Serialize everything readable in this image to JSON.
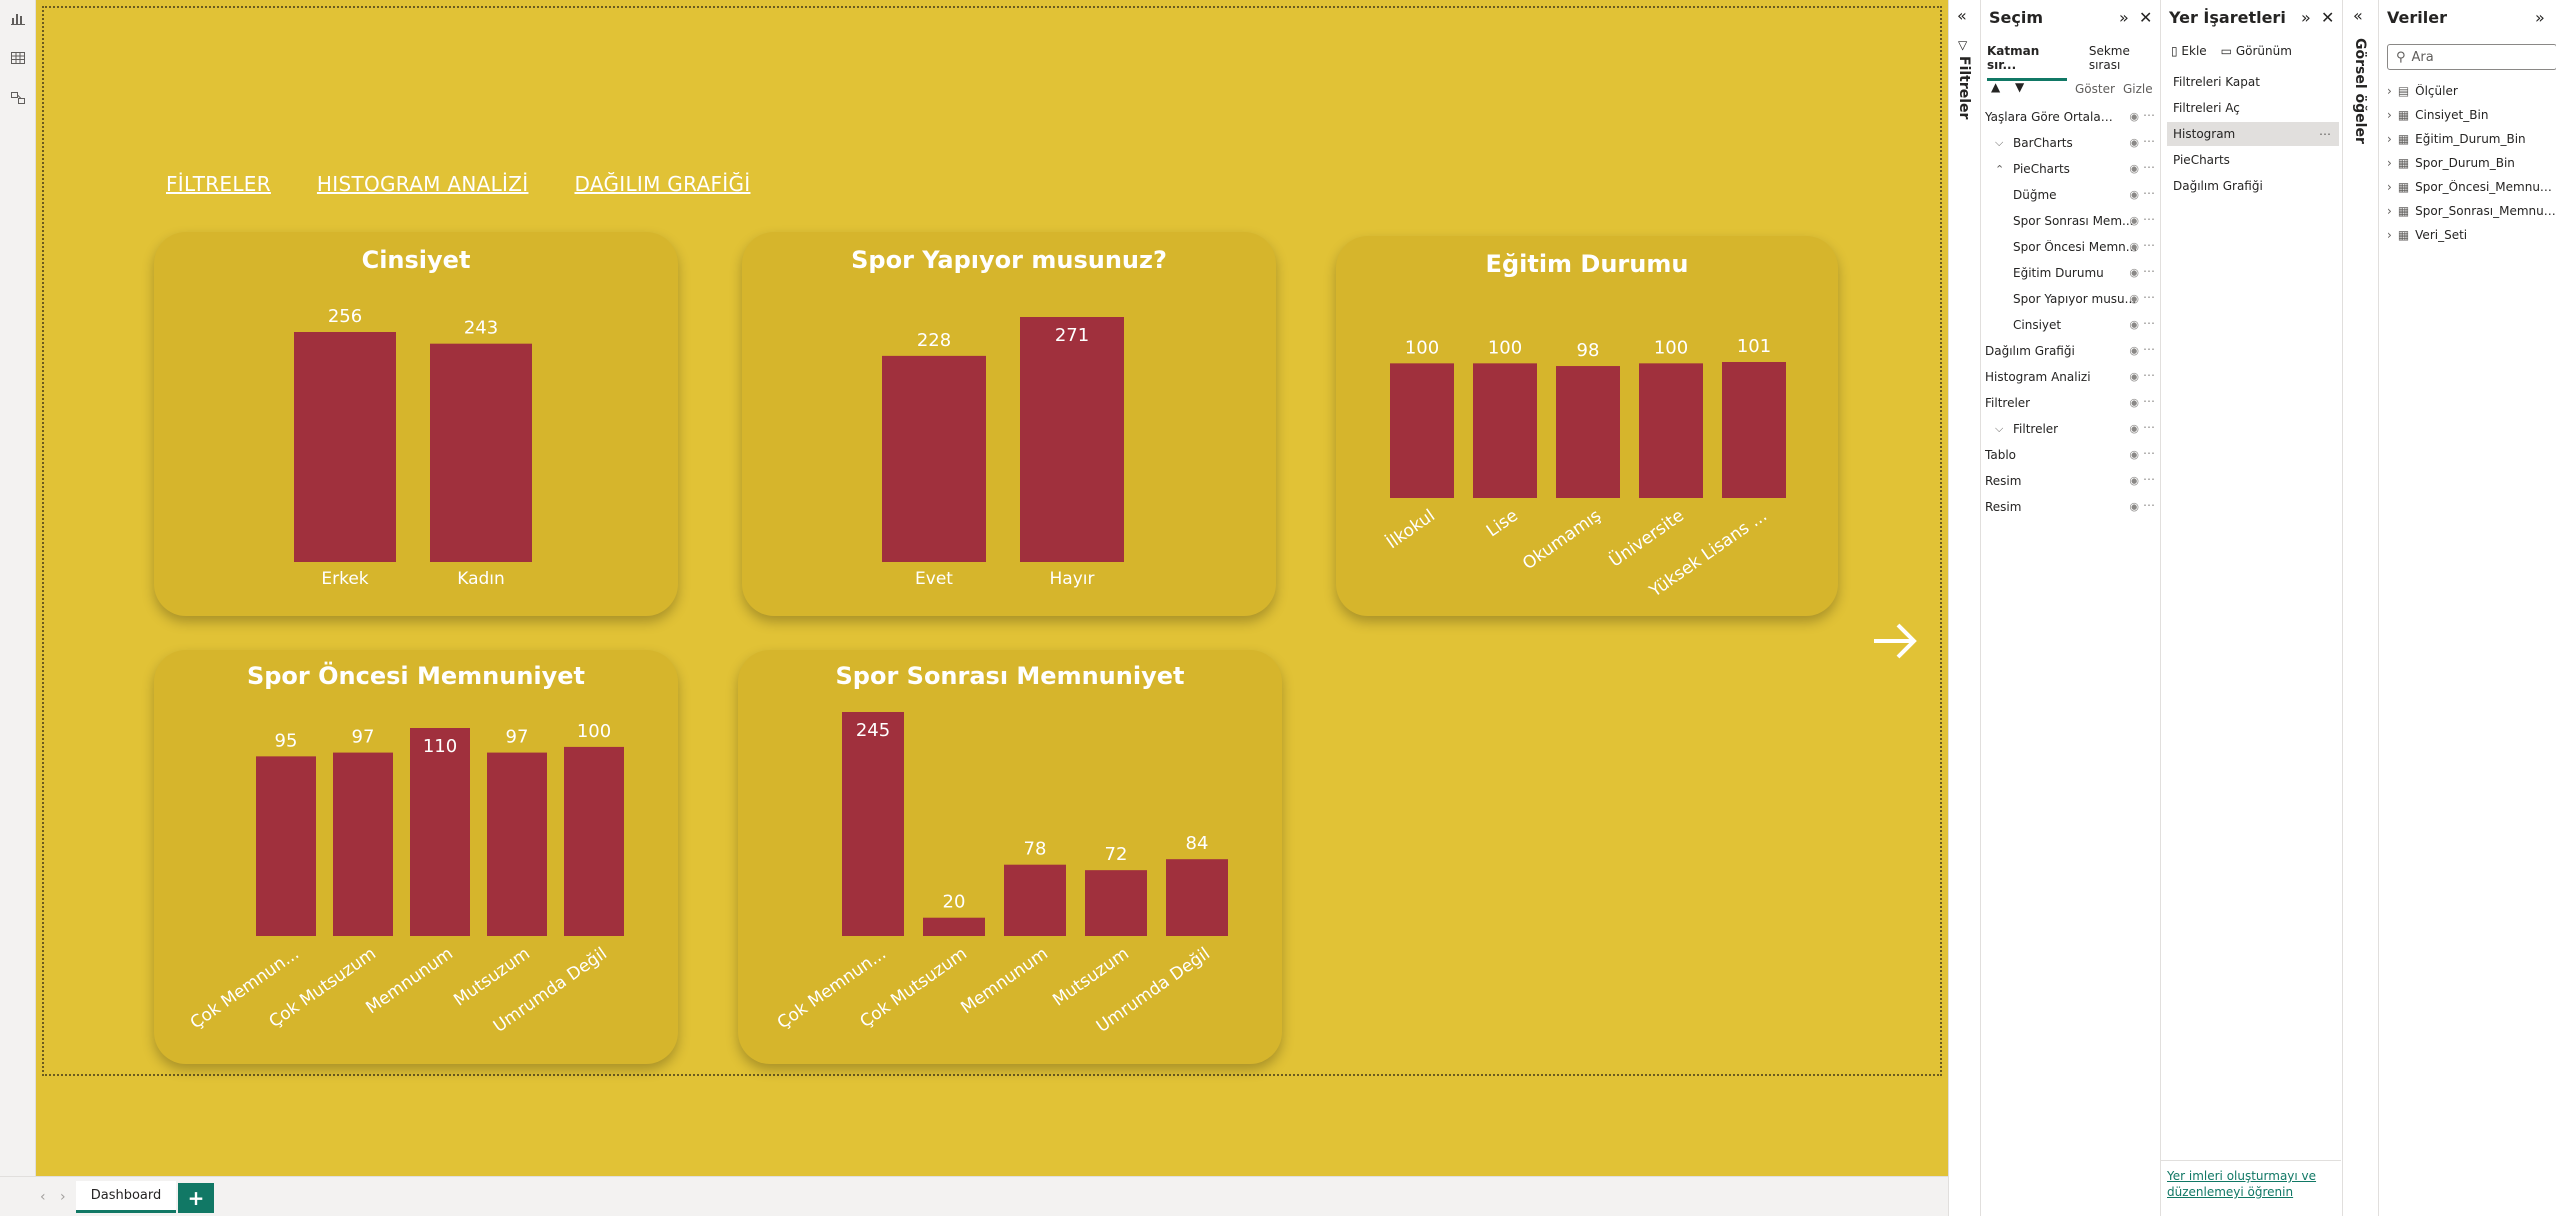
{
  "nav_links": [
    "FİLTRELER",
    "HISTOGRAM ANALİZİ",
    "DAĞILIM GRAFİĞİ"
  ],
  "colors": {
    "canvas": "#e1c236",
    "card": "#d6b52c",
    "bar": "#a0303d",
    "accent": "#117865"
  },
  "charts": [
    {
      "title": "Cinsiyet",
      "rotate": false,
      "labels_inside_max": false
    },
    {
      "title": "Spor Yapıyor musunuz?",
      "rotate": false
    },
    {
      "title": "Eğitim Durumu",
      "rotate": true
    },
    {
      "title": "Spor Öncesi Memnuniyet",
      "rotate": true
    },
    {
      "title": "Spor Sonrası Memnuniyet",
      "rotate": true
    }
  ],
  "chart_data": [
    {
      "type": "bar",
      "title": "Cinsiyet",
      "categories": [
        "Erkek",
        "Kadın"
      ],
      "values": [
        256,
        243
      ],
      "ylim": [
        0,
        256
      ]
    },
    {
      "type": "bar",
      "title": "Spor Yapıyor musunuz?",
      "categories": [
        "Evet",
        "Hayır"
      ],
      "values": [
        228,
        271
      ],
      "ylim": [
        0,
        271
      ]
    },
    {
      "type": "bar",
      "title": "Eğitim Durumu",
      "categories": [
        "İlkokul",
        "Lise",
        "Okumamış",
        "Üniversite",
        "Yüksek Lisans ..."
      ],
      "values": [
        100,
        100,
        98,
        100,
        101
      ],
      "ylim": [
        0,
        101
      ]
    },
    {
      "type": "bar",
      "title": "Spor Öncesi Memnuniyet",
      "categories": [
        "Çok Memnun...",
        "Çok Mutsuzum",
        "Memnunum",
        "Mutsuzum",
        "Umrumda Değil"
      ],
      "values": [
        95,
        97,
        110,
        97,
        100
      ],
      "ylim": [
        0,
        110
      ]
    },
    {
      "type": "bar",
      "title": "Spor Sonrası Memnuniyet",
      "categories": [
        "Çok Memnun...",
        "Çok Mutsuzum",
        "Memnunum",
        "Mutsuzum",
        "Umrumda Değil"
      ],
      "values": [
        245,
        20,
        78,
        72,
        84
      ],
      "ylim": [
        0,
        245
      ]
    }
  ],
  "bottom": {
    "tab": "Dashboard",
    "add": "+"
  },
  "filters_pane": {
    "title": "Filtreler"
  },
  "selection_pane": {
    "title": "Seçim",
    "tabs": [
      "Katman sır...",
      "Sekme sırası"
    ],
    "show": "Göster",
    "hide": "Gizle",
    "layers": [
      {
        "label": "Yaşlara Göre Ortalama ...",
        "indent": 0,
        "chev": ""
      },
      {
        "label": "BarCharts",
        "indent": 1,
        "chev": "⌵"
      },
      {
        "label": "PieCharts",
        "indent": 1,
        "chev": "⌃"
      },
      {
        "label": "Düğme",
        "indent": 2,
        "chev": ""
      },
      {
        "label": "Spor Sonrası Mem...",
        "indent": 2,
        "chev": ""
      },
      {
        "label": "Spor Öncesi Memn...",
        "indent": 2,
        "chev": ""
      },
      {
        "label": "Eğitim Durumu",
        "indent": 2,
        "chev": ""
      },
      {
        "label": "Spor Yapıyor musu...",
        "indent": 2,
        "chev": ""
      },
      {
        "label": "Cinsiyet",
        "indent": 2,
        "chev": ""
      },
      {
        "label": "Dağılım Grafiği",
        "indent": 0,
        "chev": ""
      },
      {
        "label": "Histogram Analizi",
        "indent": 0,
        "chev": ""
      },
      {
        "label": "Filtreler",
        "indent": 0,
        "chev": ""
      },
      {
        "label": "Filtreler",
        "indent": 1,
        "chev": "⌵"
      },
      {
        "label": "Tablo",
        "indent": 0,
        "chev": ""
      },
      {
        "label": "Resim",
        "indent": 0,
        "chev": ""
      },
      {
        "label": "Resim",
        "indent": 0,
        "chev": ""
      }
    ]
  },
  "bookmarks_pane": {
    "title": "Yer İşaretleri",
    "add": "Ekle",
    "view": "Görünüm",
    "items": [
      "Filtreleri Kapat",
      "Filtreleri Aç",
      "Histogram",
      "PieCharts",
      "Dağılım Grafiği"
    ],
    "selected_index": 2,
    "footer": "Yer imleri oluşturmayı ve düzenlemeyi öğrenin"
  },
  "visuals_pane": {
    "title": "Görsel öğeler"
  },
  "data_pane": {
    "title": "Veriler",
    "search_placeholder": "Ara",
    "tables": [
      "Ölçüler",
      "Cinsiyet_Bin",
      "Eğitim_Durum_Bin",
      "Spor_Durum_Bin",
      "Spor_Öncesi_Memnuni...",
      "Spor_Sonrası_Memnuni...",
      "Veri_Seti"
    ]
  }
}
